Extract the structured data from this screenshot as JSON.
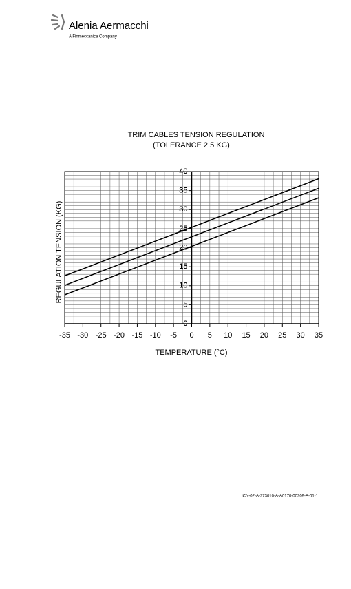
{
  "header": {
    "logo": "Alenia Aermacchi",
    "tagline": "A Finmeccanica Company"
  },
  "chart_data": {
    "type": "line",
    "title": "TRIM CABLES TENSION REGULATION",
    "subtitle": "(TOLERANCE 2.5 KG)",
    "xlabel": "TEMPERATURE (°C)",
    "ylabel": "REGULATION TENSION (KG)",
    "x": [
      -35,
      35
    ],
    "series": [
      {
        "color": "#000000",
        "values": [
          12.6,
          38.1
        ]
      },
      {
        "color": "#000000",
        "values": [
          10.1,
          35.6
        ]
      },
      {
        "color": "#000000",
        "values": [
          7.6,
          33.1
        ]
      }
    ],
    "xlim": [
      -35,
      35
    ],
    "ylim": [
      0,
      40
    ],
    "xticks": [
      -35,
      -30,
      -25,
      -20,
      -15,
      -10,
      -5,
      0,
      5,
      10,
      15,
      20,
      25,
      30,
      35
    ],
    "yticks": [
      0,
      5,
      10,
      15,
      20,
      25,
      30,
      35,
      40
    ],
    "x_minor_ticks": [
      -35,
      -32.5,
      -30,
      -27.5,
      -25,
      -22.5,
      -20,
      -17.5,
      -15,
      -12.5,
      -10,
      -7.5,
      -5,
      -2.5,
      0,
      2.5,
      5,
      7.5,
      10,
      12.5,
      15,
      17.5,
      20,
      22.5,
      25,
      27.5,
      30,
      32.5,
      35
    ],
    "y_minor_ticks": [
      0,
      1,
      2,
      3,
      4,
      5,
      6,
      7,
      8,
      9,
      10,
      11,
      12,
      13,
      14,
      15,
      16,
      17,
      18,
      19,
      20,
      21,
      22,
      23,
      24,
      25,
      26,
      27,
      28,
      29,
      30,
      31,
      32,
      33,
      34,
      35,
      36,
      37,
      38,
      39,
      40
    ],
    "grid": true
  },
  "footer": {
    "icn": "ICN-02-A-273010-A-A0170-00209-A-01-1"
  }
}
